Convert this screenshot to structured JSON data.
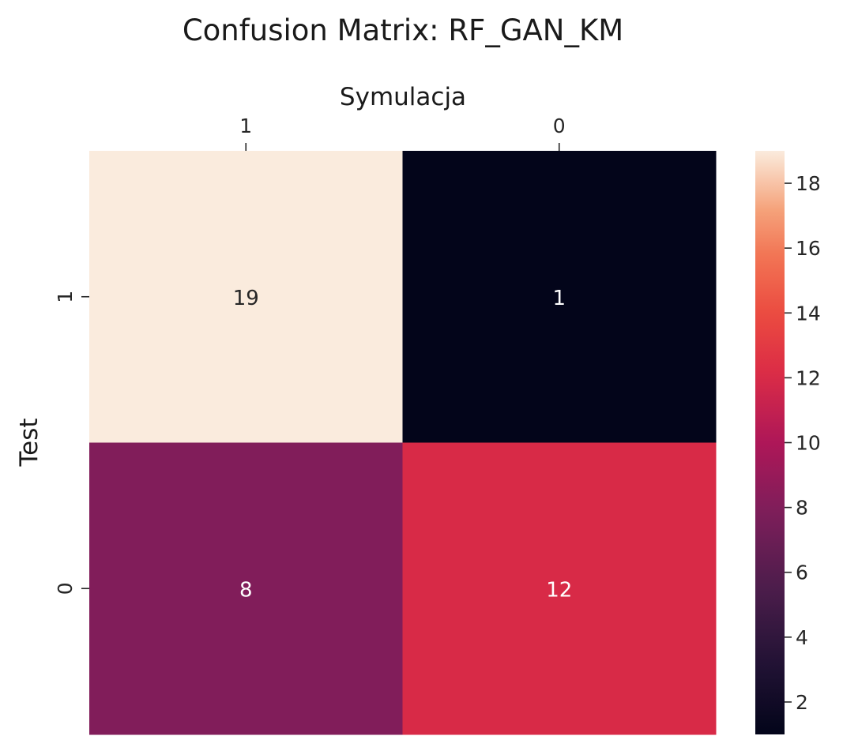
{
  "chart_data": {
    "type": "heatmap",
    "title": "Confusion Matrix: RF_GAN_KM",
    "xlabel": "Symulacja",
    "ylabel": "Test",
    "x_categories": [
      "1",
      "0"
    ],
    "y_categories": [
      "1",
      "0"
    ],
    "values": [
      [
        19,
        1
      ],
      [
        8,
        12
      ]
    ],
    "colorbar": {
      "min": 1,
      "max": 19,
      "ticks": [
        2,
        4,
        6,
        8,
        10,
        12,
        14,
        16,
        18
      ]
    },
    "colormap": "rocket",
    "x_axis_position": "top"
  }
}
